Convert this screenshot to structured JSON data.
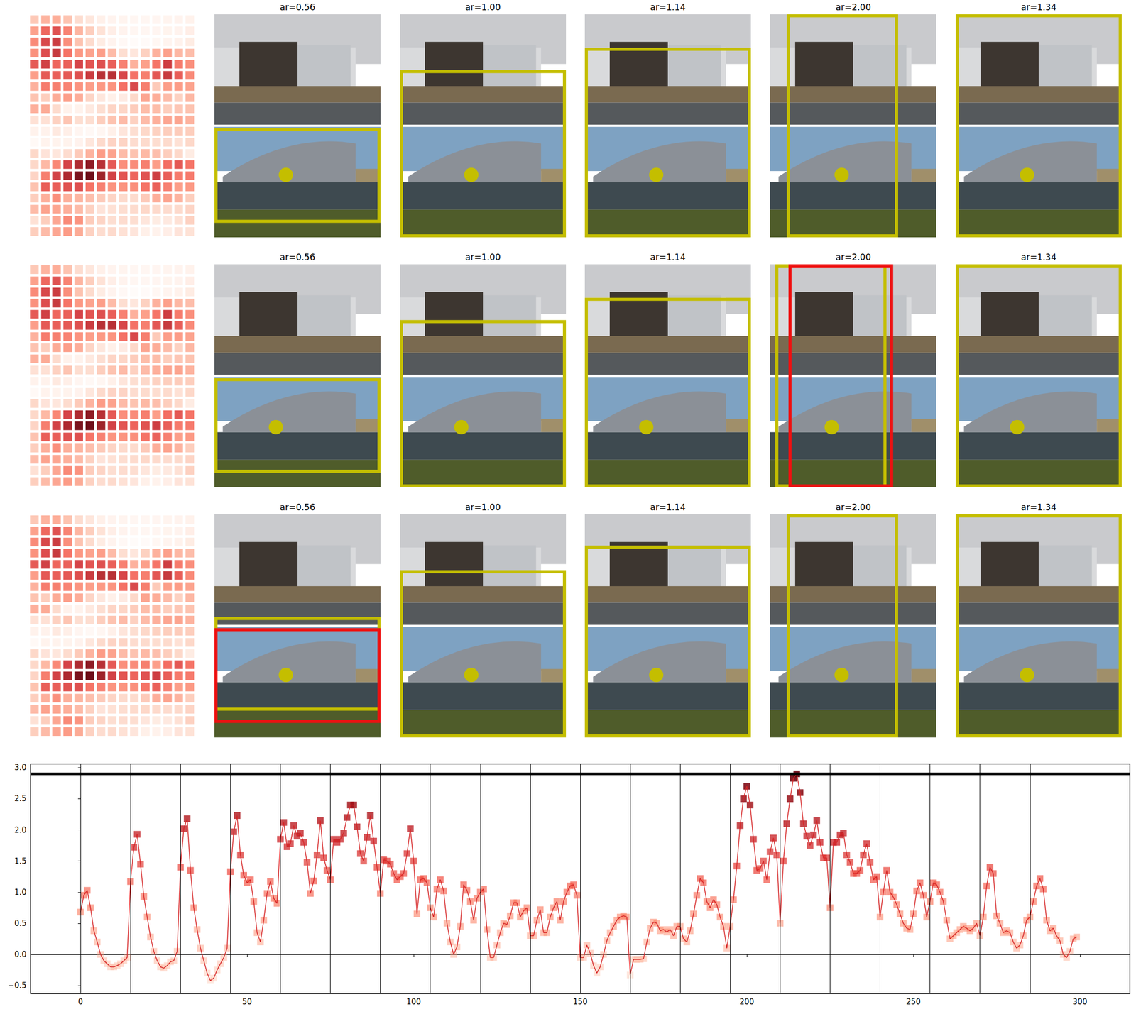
{
  "panel_rows": [
    [
      "ar=0.56",
      "ar=1.00",
      "ar=1.14",
      "ar=2.00",
      "ar=1.34"
    ],
    [
      "ar=0.56",
      "ar=1.00",
      "ar=1.14",
      "ar=2.00",
      "ar=1.34"
    ],
    [
      "ar=0.56",
      "ar=1.00",
      "ar=1.14",
      "ar=2.00",
      "ar=1.34"
    ]
  ],
  "chart_data": {
    "type": "line",
    "marker": "square",
    "color": "#d62728",
    "x": [
      0,
      1,
      2,
      3,
      4,
      5,
      6,
      7,
      8,
      9,
      10,
      11,
      12,
      13,
      14,
      15,
      16,
      17,
      18,
      19,
      20,
      21,
      22,
      23,
      24,
      25,
      26,
      27,
      28,
      29,
      30,
      31,
      32,
      33,
      34,
      35,
      36,
      37,
      38,
      39,
      40,
      41,
      42,
      43,
      44,
      45,
      46,
      47,
      48,
      49,
      50,
      51,
      52,
      53,
      54,
      55,
      56,
      57,
      58,
      59,
      60,
      61,
      62,
      63,
      64,
      65,
      66,
      67,
      68,
      69,
      70,
      71,
      72,
      73,
      74,
      75,
      76,
      77,
      78,
      79,
      80,
      81,
      82,
      83,
      84,
      85,
      86,
      87,
      88,
      89,
      90,
      91,
      92,
      93,
      94,
      95,
      96,
      97,
      98,
      99,
      100,
      101,
      102,
      103,
      104,
      105,
      106,
      107,
      108,
      109,
      110,
      111,
      112,
      113,
      114,
      115,
      116,
      117,
      118,
      119,
      120,
      121,
      122,
      123,
      124,
      125,
      126,
      127,
      128,
      129,
      130,
      131,
      132,
      133,
      134,
      135,
      136,
      137,
      138,
      139,
      140,
      141,
      142,
      143,
      144,
      145,
      146,
      147,
      148,
      149,
      150,
      151,
      152,
      153,
      154,
      155,
      156,
      157,
      158,
      159,
      160,
      161,
      162,
      163,
      164,
      165,
      166,
      167,
      168,
      169,
      170,
      171,
      172,
      173,
      174,
      175,
      176,
      177,
      178,
      179,
      180,
      181,
      182,
      183,
      184,
      185,
      186,
      187,
      188,
      189,
      190,
      191,
      192,
      193,
      194,
      195,
      196,
      197,
      198,
      199,
      200,
      201,
      202,
      203,
      204,
      205,
      206,
      207,
      208,
      209,
      210,
      211,
      212,
      213,
      214,
      215,
      216,
      217,
      218,
      219,
      220,
      221,
      222,
      223,
      224,
      225,
      226,
      227,
      228,
      229,
      230,
      231,
      232,
      233,
      234,
      235,
      236,
      237,
      238,
      239,
      240,
      241,
      242,
      243,
      244,
      245,
      246,
      247,
      248,
      249,
      250,
      251,
      252,
      253,
      254,
      255,
      256,
      257,
      258,
      259,
      260,
      261,
      262,
      263,
      264,
      265,
      266,
      267,
      268,
      269,
      270,
      271,
      272,
      273,
      274,
      275,
      276,
      277,
      278,
      279,
      280,
      281,
      282,
      283,
      284,
      285,
      286,
      287,
      288,
      289,
      290,
      291,
      292,
      293,
      294,
      295,
      296,
      297,
      298,
      299
    ],
    "values": [
      0.68,
      0.95,
      1.03,
      0.75,
      0.38,
      0.2,
      0.0,
      -0.1,
      -0.15,
      -0.2,
      -0.2,
      -0.18,
      -0.15,
      -0.1,
      -0.05,
      1.17,
      1.72,
      1.93,
      1.45,
      0.93,
      0.6,
      0.28,
      0.05,
      -0.1,
      -0.2,
      -0.22,
      -0.18,
      -0.12,
      -0.1,
      0.05,
      1.4,
      2.02,
      2.18,
      1.35,
      0.75,
      0.4,
      0.1,
      -0.1,
      -0.3,
      -0.42,
      -0.38,
      -0.25,
      -0.15,
      -0.05,
      0.1,
      1.33,
      1.97,
      2.23,
      1.6,
      1.27,
      1.15,
      1.2,
      0.85,
      0.35,
      0.2,
      0.55,
      0.98,
      1.17,
      0.9,
      0.82,
      1.85,
      2.12,
      1.73,
      1.78,
      2.07,
      1.9,
      1.95,
      1.8,
      1.48,
      0.98,
      1.18,
      1.6,
      2.15,
      1.55,
      1.35,
      1.2,
      1.85,
      1.8,
      1.85,
      1.95,
      2.2,
      2.4,
      2.4,
      2.05,
      1.62,
      1.5,
      1.88,
      2.23,
      1.82,
      1.4,
      0.98,
      1.52,
      1.5,
      1.45,
      1.3,
      1.2,
      1.25,
      1.3,
      1.62,
      2.02,
      1.5,
      0.65,
      1.2,
      1.22,
      1.15,
      0.75,
      0.6,
      1.05,
      1.2,
      1.02,
      0.5,
      0.2,
      0.0,
      0.12,
      0.45,
      1.12,
      1.03,
      0.85,
      0.55,
      0.9,
      1.0,
      1.05,
      0.4,
      -0.05,
      -0.05,
      0.15,
      0.35,
      0.5,
      0.48,
      0.62,
      0.83,
      0.83,
      0.6,
      0.7,
      0.75,
      0.3,
      0.3,
      0.55,
      0.72,
      0.35,
      0.35,
      0.6,
      0.75,
      0.85,
      0.55,
      0.85,
      1.0,
      1.1,
      1.12,
      0.95,
      -0.05,
      -0.05,
      0.15,
      0.02,
      -0.18,
      -0.3,
      -0.2,
      0.0,
      0.22,
      0.35,
      0.45,
      0.55,
      0.6,
      0.62,
      0.6,
      -0.33,
      -0.08,
      -0.08,
      -0.08,
      -0.07,
      0.2,
      0.42,
      0.52,
      0.5,
      0.38,
      0.4,
      0.36,
      0.4,
      0.3,
      0.45,
      0.45,
      0.25,
      0.2,
      0.38,
      0.65,
      0.95,
      1.22,
      1.15,
      0.85,
      0.75,
      0.88,
      0.8,
      0.6,
      0.45,
      0.1,
      0.45,
      0.88,
      1.42,
      2.07,
      2.5,
      2.7,
      2.4,
      1.85,
      1.35,
      1.38,
      1.5,
      1.2,
      1.65,
      1.87,
      1.6,
      0.5,
      1.5,
      2.1,
      2.5,
      2.83,
      2.9,
      2.6,
      2.1,
      1.9,
      1.75,
      1.92,
      2.15,
      1.8,
      1.55,
      1.55,
      0.75,
      1.8,
      1.8,
      1.92,
      1.95,
      1.6,
      1.48,
      1.3,
      1.3,
      1.35,
      1.6,
      1.78,
      1.48,
      1.2,
      1.25,
      0.6,
      1.0,
      1.35,
      1.0,
      0.92,
      0.8,
      0.65,
      0.5,
      0.42,
      0.4,
      0.65,
      1.02,
      1.15,
      0.95,
      0.6,
      0.85,
      1.15,
      1.12,
      1.0,
      0.85,
      0.55,
      0.25,
      0.3,
      0.35,
      0.4,
      0.45,
      0.42,
      0.38,
      0.42,
      0.5,
      0.3,
      0.6,
      1.1,
      1.4,
      1.3,
      0.62,
      0.5,
      0.35,
      0.38,
      0.35,
      0.2,
      0.1,
      0.15,
      0.3,
      0.55,
      0.6,
      0.85,
      1.1,
      1.22,
      1.05,
      0.55,
      0.38,
      0.42,
      0.3,
      0.22,
      0.0,
      -0.05,
      0.05,
      0.25,
      0.28
    ],
    "hline": 2.9,
    "vlines": [
      0,
      15,
      30,
      45,
      60,
      75,
      90,
      105,
      120,
      135,
      150,
      165,
      180,
      195,
      210,
      225,
      240,
      255,
      270,
      285
    ],
    "xlim": [
      -15,
      315
    ],
    "xticks": [
      0,
      50,
      100,
      150,
      200,
      250,
      300
    ],
    "ylim": [
      -0.63,
      3.06
    ],
    "yticks": [
      {
        "value": -0.5,
        "label": "−0.5"
      },
      {
        "value": 0,
        "label": "0.0"
      },
      {
        "value": 0.5,
        "label": "0.5"
      },
      {
        "value": 1,
        "label": "1.0"
      },
      {
        "value": 1.5,
        "label": "1.5"
      },
      {
        "value": 2,
        "label": "2.0"
      },
      {
        "value": 2.5,
        "label": "2.5"
      },
      {
        "value": 3,
        "label": "3.0"
      }
    ],
    "grid": false
  }
}
